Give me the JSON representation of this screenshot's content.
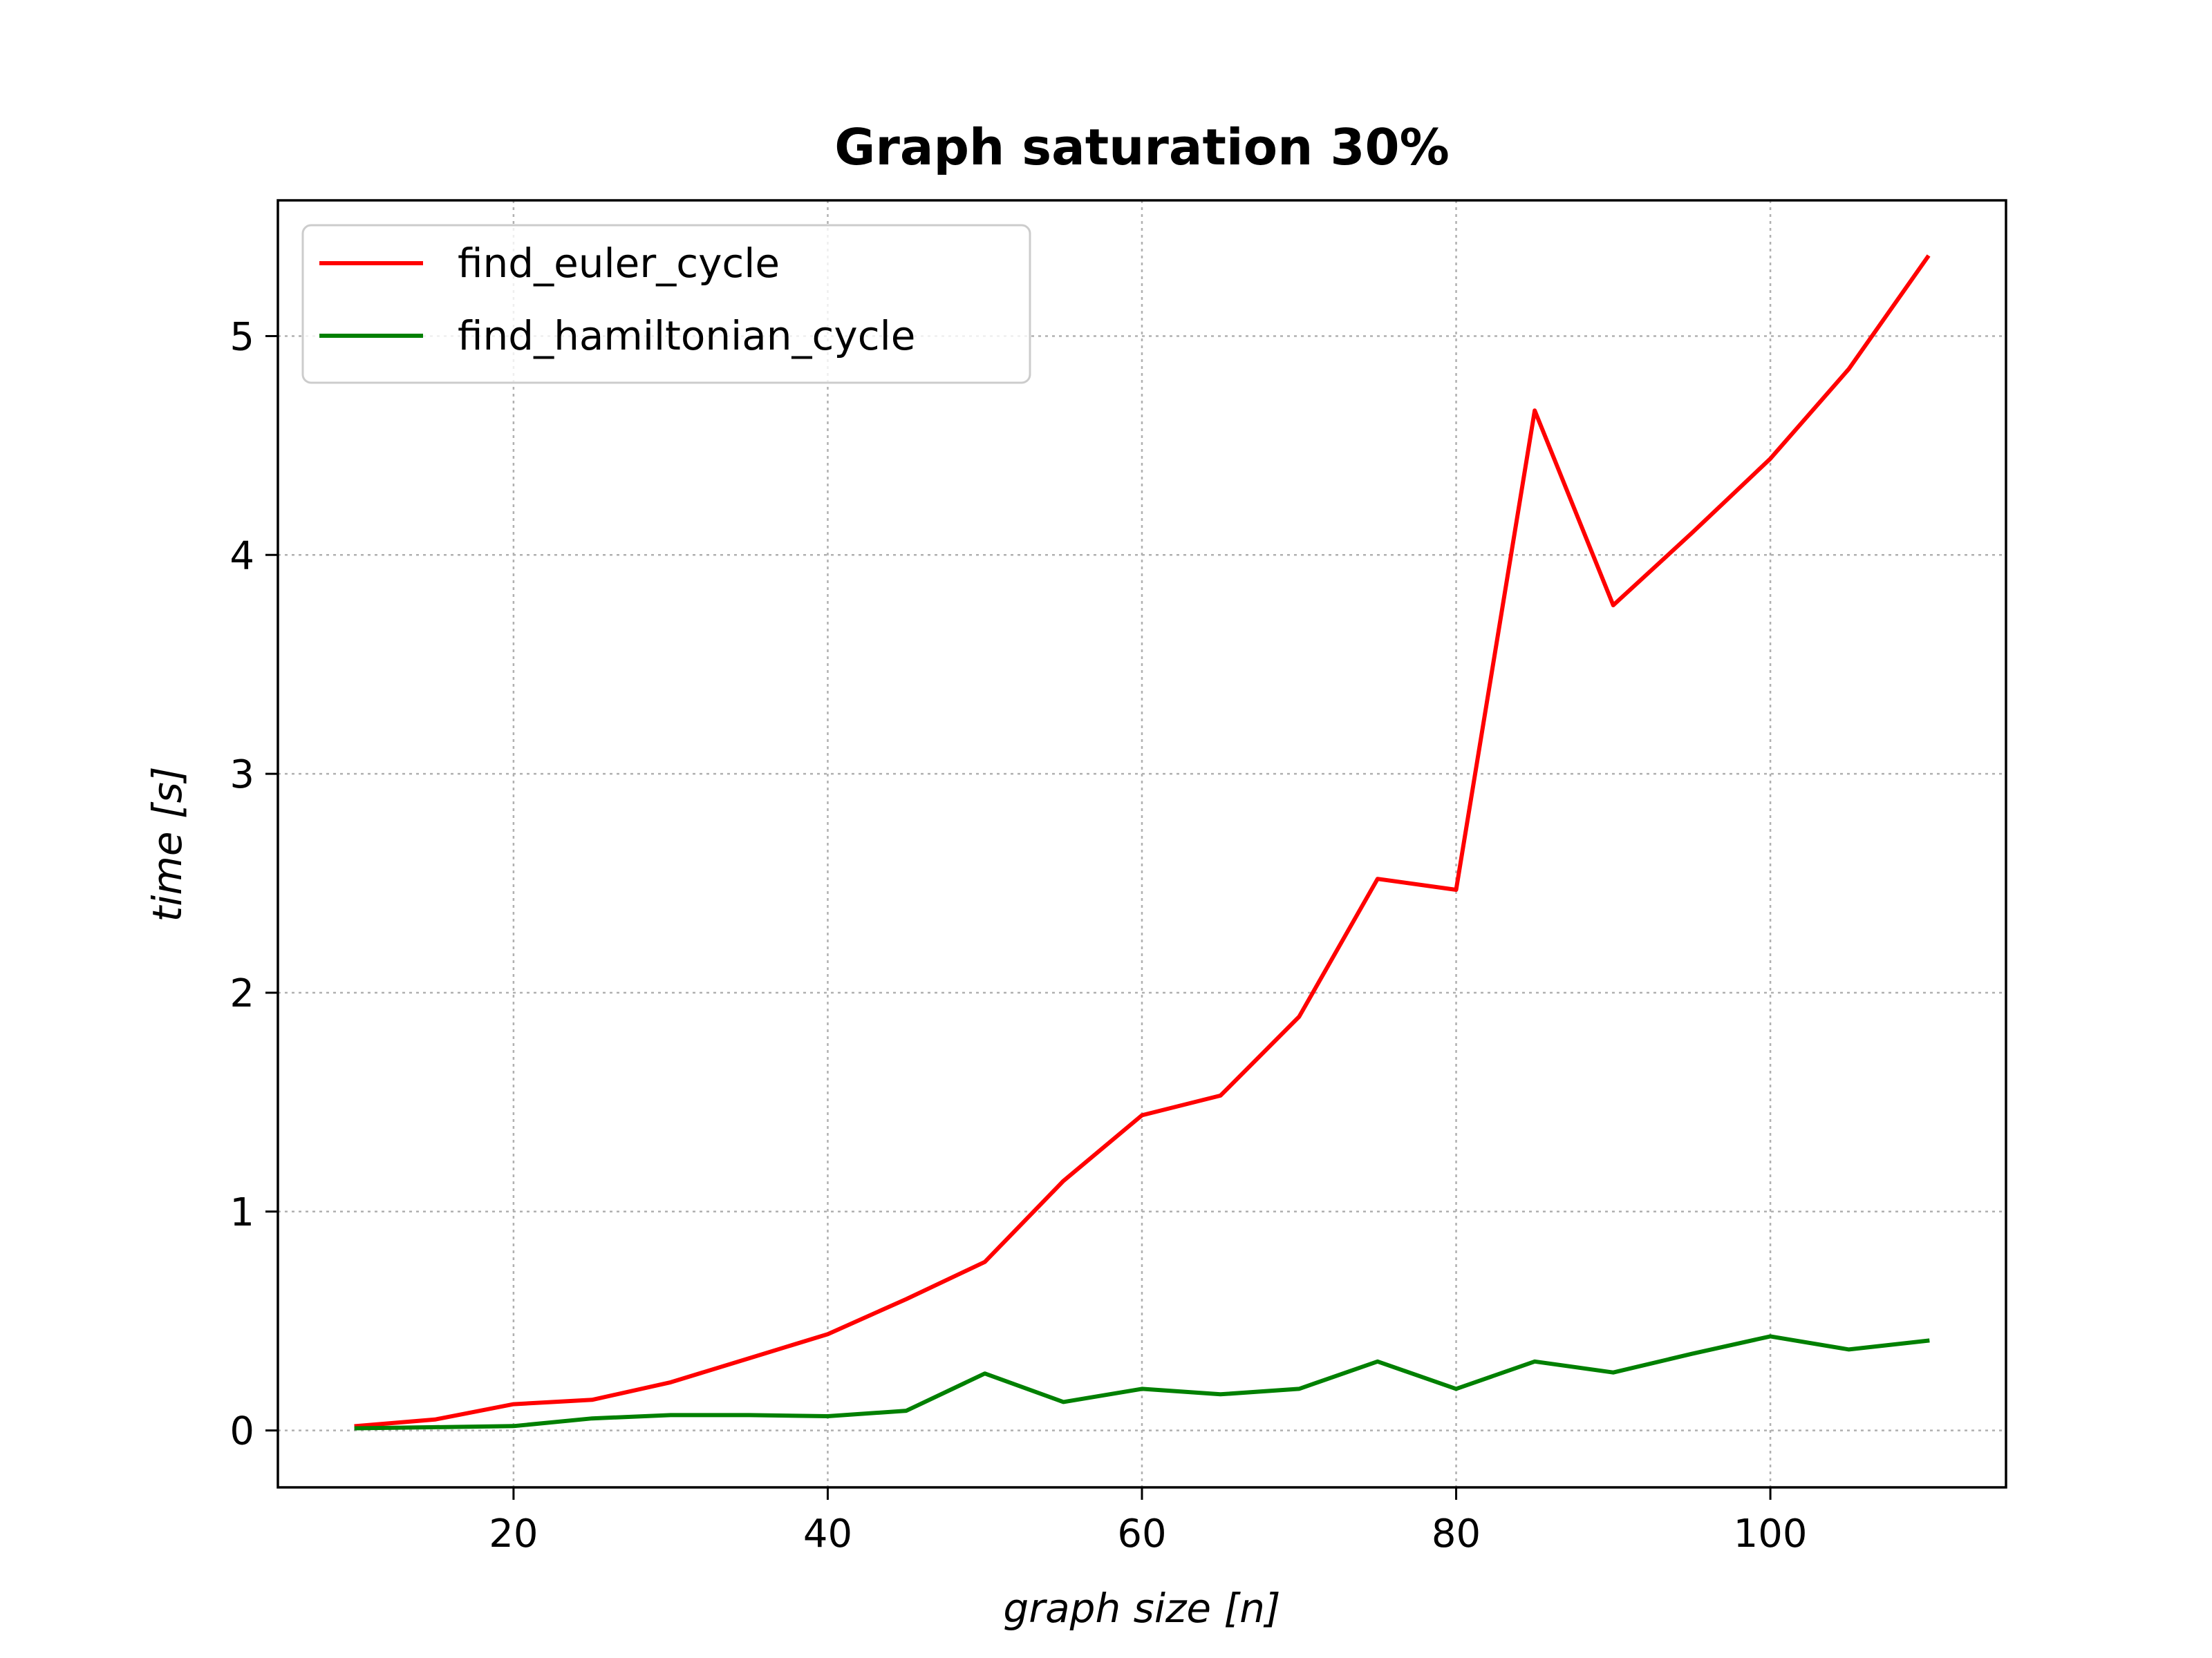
{
  "chart_data": {
    "type": "line",
    "title": "Graph saturation 30%",
    "xlabel": "graph size [n]",
    "ylabel": "time [s]",
    "xlim": [
      5,
      115
    ],
    "ylim": [
      -0.26,
      5.62
    ],
    "xticks": [
      20,
      40,
      60,
      80,
      100
    ],
    "yticks": [
      0,
      1,
      2,
      3,
      4,
      5
    ],
    "grid": true,
    "legend_position": "top-left",
    "x": [
      10,
      15,
      20,
      25,
      30,
      35,
      40,
      45,
      50,
      55,
      60,
      65,
      70,
      75,
      80,
      85,
      90,
      95,
      100,
      105,
      110
    ],
    "series": [
      {
        "name": "find_euler_cycle",
        "color": "#ff0000",
        "values": [
          0.02,
          0.05,
          0.12,
          0.14,
          0.22,
          0.33,
          0.44,
          0.6,
          0.77,
          1.14,
          1.44,
          1.53,
          1.89,
          2.52,
          2.47,
          4.66,
          3.77,
          4.1,
          4.44,
          4.85,
          5.36
        ]
      },
      {
        "name": "find_hamiltonian_cycle",
        "color": "#008000",
        "values": [
          0.01,
          0.015,
          0.02,
          0.055,
          0.07,
          0.07,
          0.065,
          0.09,
          0.26,
          0.13,
          0.19,
          0.165,
          0.19,
          0.315,
          0.19,
          0.315,
          0.265,
          0.35,
          0.43,
          0.37,
          0.41
        ]
      }
    ]
  }
}
